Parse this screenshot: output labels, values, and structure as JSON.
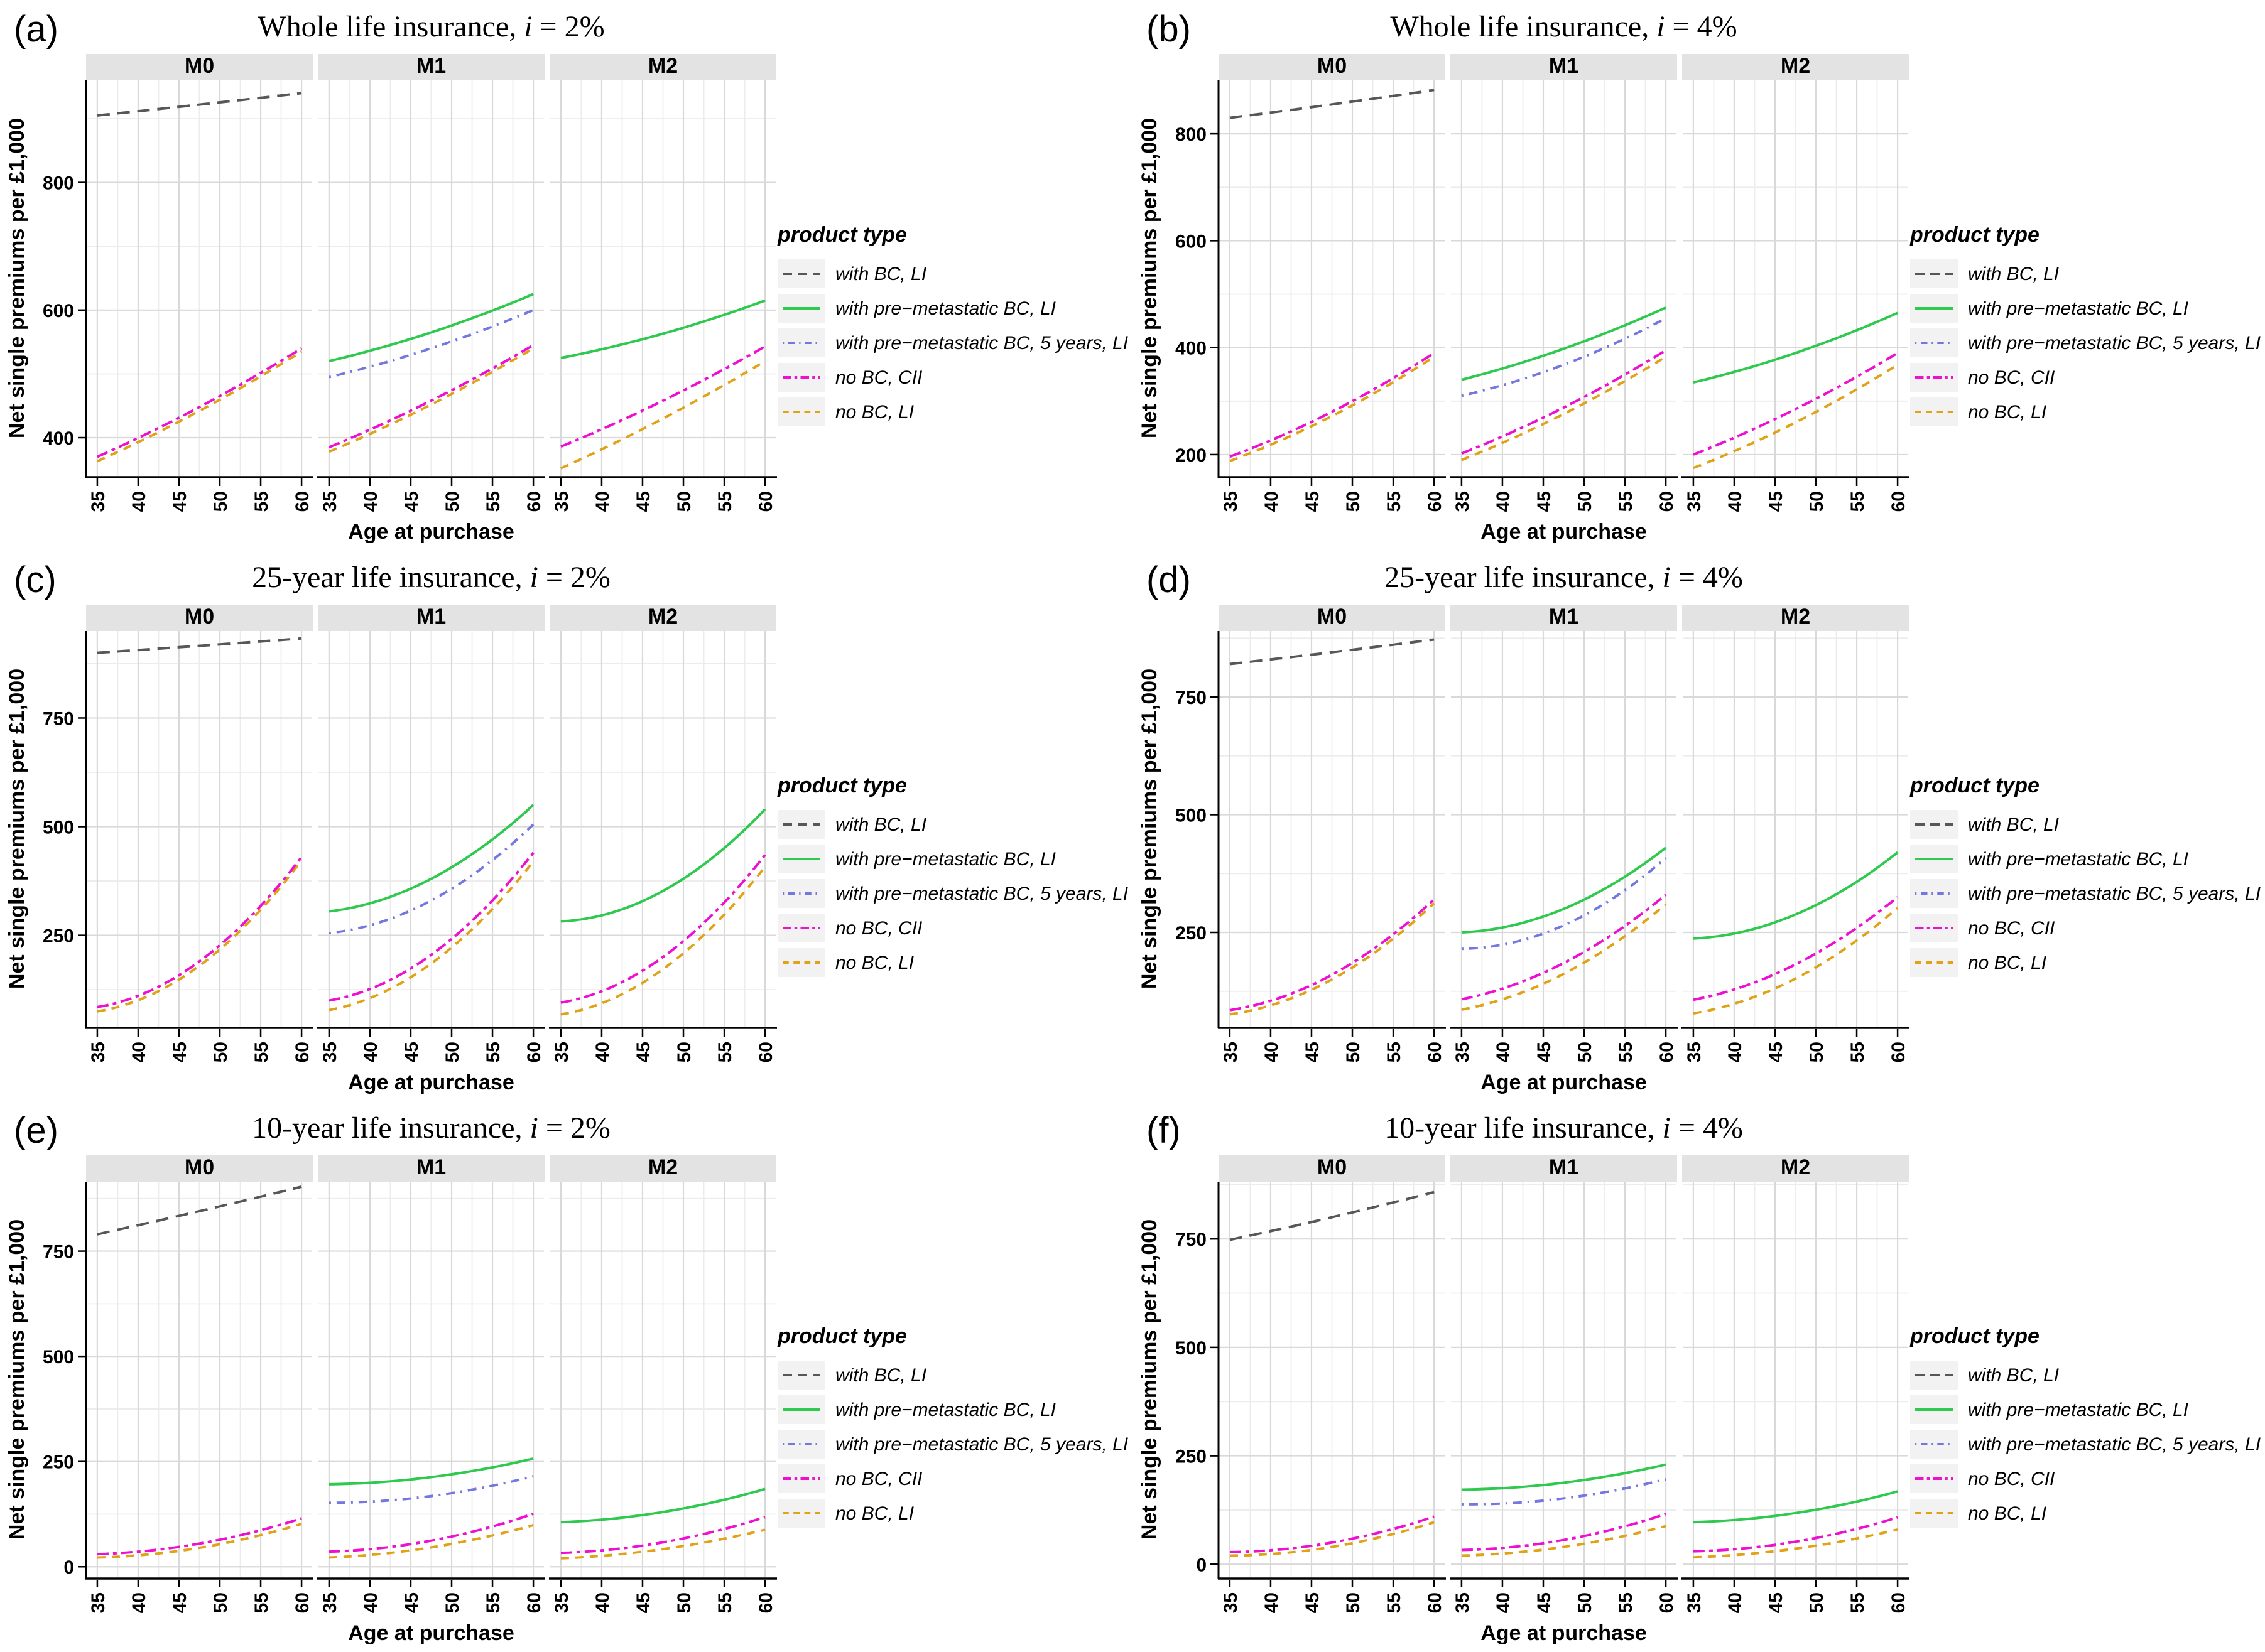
{
  "figure": {
    "y_axis_label": "Net single premiums per £1,000",
    "x_axis_label": "Age at purchase",
    "legend_title": "product type",
    "facet_labels": [
      "M0",
      "M1",
      "M2"
    ],
    "x_ticks": [
      35,
      40,
      45,
      50,
      55,
      60
    ],
    "x_domain": [
      33.7,
      61.3
    ],
    "colors": {
      "strip_bg": "#E3E3E3",
      "grid_major": "#D9D9D9",
      "grid_minor": "#ECECEC",
      "legend_key_bg": "#F2F2F2",
      "axis_line": "#000000"
    },
    "series": [
      {
        "key": "withBC",
        "label": "with BC, LI",
        "color": "#575757",
        "dash": [
          20,
          12
        ]
      },
      {
        "key": "preMet",
        "label": "with pre−metastatic BC, LI",
        "color": "#2FC94F",
        "dash": []
      },
      {
        "key": "preMet5",
        "label": "with pre−metastatic BC, 5 years, LI",
        "color": "#7577E0",
        "dash": [
          3,
          9,
          14,
          9
        ]
      },
      {
        "key": "noBC_CII",
        "label": "no BC, CII",
        "color": "#EE10D0",
        "dash": [
          18,
          7,
          6,
          7
        ]
      },
      {
        "key": "noBC_LI",
        "label": "no BC, LI",
        "color": "#E0A318",
        "dash": [
          13,
          10
        ]
      }
    ]
  },
  "chart_data": [
    {
      "id": "a",
      "label": "(a)",
      "type": "line",
      "title_prefix": "Whole life insurance, ",
      "title_var": "i",
      "title_suffix": " = 2%",
      "x_control": [
        35,
        47.5,
        60
      ],
      "y_ticks": [
        400,
        600,
        800
      ],
      "y_domain": [
        340,
        960
      ],
      "facets": {
        "M0": {
          "withBC": [
            905,
            922,
            940
          ],
          "noBC_CII": [
            370,
            448,
            540
          ],
          "noBC_LI": [
            363,
            442,
            535
          ]
        },
        "M1": {
          "preMet": [
            520,
            565,
            625
          ],
          "preMet5": [
            495,
            540,
            600
          ],
          "noBC_CII": [
            385,
            458,
            545
          ],
          "noBC_LI": [
            378,
            452,
            540
          ]
        },
        "M2": {
          "preMet": [
            525,
            563,
            615
          ],
          "noBC_CII": [
            386,
            458,
            543
          ],
          "noBC_LI": [
            352,
            430,
            520
          ]
        }
      }
    },
    {
      "id": "b",
      "label": "(b)",
      "type": "line",
      "title_prefix": "Whole life insurance, ",
      "title_var": "i",
      "title_suffix": " = 4%",
      "x_control": [
        35,
        47.5,
        60
      ],
      "y_ticks": [
        200,
        400,
        600,
        800
      ],
      "y_domain": [
        160,
        900
      ],
      "facets": {
        "M0": {
          "withBC": [
            830,
            855,
            882
          ],
          "noBC_CII": [
            196,
            280,
            390
          ],
          "noBC_LI": [
            188,
            272,
            383
          ]
        },
        "M1": {
          "preMet": [
            340,
            398,
            475
          ],
          "preMet5": [
            310,
            368,
            455
          ],
          "noBC_CII": [
            202,
            288,
            395
          ],
          "noBC_LI": [
            190,
            276,
            383
          ]
        },
        "M2": {
          "preMet": [
            335,
            390,
            465
          ],
          "noBC_CII": [
            200,
            285,
            390
          ],
          "noBC_LI": [
            175,
            260,
            368
          ]
        }
      }
    },
    {
      "id": "c",
      "label": "(c)",
      "type": "line",
      "title_prefix": "25-year life insurance, ",
      "title_var": "i",
      "title_suffix": " = 2%",
      "x_control": [
        35,
        47.5,
        60
      ],
      "y_ticks": [
        250,
        500,
        750
      ],
      "y_domain": [
        40,
        950
      ],
      "facets": {
        "M0": {
          "withBC": [
            900,
            916,
            933
          ],
          "noBC_CII": [
            85,
            190,
            430
          ],
          "noBC_LI": [
            75,
            180,
            422
          ]
        },
        "M1": {
          "preMet": [
            305,
            380,
            550
          ],
          "preMet5": [
            255,
            330,
            505
          ],
          "noBC_CII": [
            100,
            205,
            440
          ],
          "noBC_LI": [
            78,
            185,
            420
          ]
        },
        "M2": {
          "preMet": [
            282,
            352,
            540
          ],
          "noBC_CII": [
            95,
            200,
            435
          ],
          "noBC_LI": [
            68,
            172,
            408
          ]
        }
      }
    },
    {
      "id": "d",
      "label": "(d)",
      "type": "line",
      "title_prefix": "25-year life insurance, ",
      "title_var": "i",
      "title_suffix": " = 4%",
      "x_control": [
        35,
        47.5,
        60
      ],
      "y_ticks": [
        250,
        500,
        750
      ],
      "y_domain": [
        50,
        890
      ],
      "facets": {
        "M0": {
          "withBC": [
            820,
            845,
            872
          ],
          "noBC_CII": [
            85,
            160,
            320
          ],
          "noBC_LI": [
            76,
            150,
            312
          ]
        },
        "M1": {
          "preMet": [
            250,
            300,
            430
          ],
          "preMet5": [
            215,
            265,
            408
          ],
          "noBC_CII": [
            108,
            185,
            330
          ],
          "noBC_LI": [
            86,
            162,
            310
          ]
        },
        "M2": {
          "preMet": [
            237,
            288,
            420
          ],
          "noBC_CII": [
            107,
            182,
            325
          ],
          "noBC_LI": [
            78,
            152,
            302
          ]
        }
      }
    },
    {
      "id": "e",
      "label": "(e)",
      "type": "line",
      "title_prefix": "10-year life insurance, ",
      "title_var": "i",
      "title_suffix": " = 2%",
      "x_control": [
        35,
        47.5,
        60
      ],
      "y_ticks": [
        0,
        250,
        500,
        750
      ],
      "y_domain": [
        -25,
        915
      ],
      "facets": {
        "M0": {
          "withBC": [
            790,
            845,
            903
          ],
          "noBC_CII": [
            30,
            55,
            115
          ],
          "noBC_LI": [
            22,
            45,
            102
          ]
        },
        "M1": {
          "preMet": [
            196,
            213,
            257
          ],
          "preMet5": [
            152,
            168,
            215
          ],
          "noBC_CII": [
            36,
            62,
            126
          ],
          "noBC_LI": [
            22,
            46,
            99
          ]
        },
        "M2": {
          "preMet": [
            106,
            130,
            185
          ],
          "noBC_CII": [
            33,
            58,
            118
          ],
          "noBC_LI": [
            20,
            42,
            88
          ]
        }
      }
    },
    {
      "id": "f",
      "label": "(f)",
      "type": "line",
      "title_prefix": "10-year life insurance, ",
      "title_var": "i",
      "title_suffix": " = 4%",
      "x_control": [
        35,
        47.5,
        60
      ],
      "y_ticks": [
        0,
        250,
        500,
        750
      ],
      "y_domain": [
        -30,
        882
      ],
      "facets": {
        "M0": {
          "withBC": [
            748,
            800,
            858
          ],
          "noBC_CII": [
            28,
            50,
            110
          ],
          "noBC_LI": [
            20,
            40,
            97
          ]
        },
        "M1": {
          "preMet": [
            172,
            188,
            230
          ],
          "preMet5": [
            138,
            152,
            196
          ],
          "noBC_CII": [
            33,
            56,
            116
          ],
          "noBC_LI": [
            20,
            40,
            88
          ]
        },
        "M2": {
          "preMet": [
            97,
            118,
            168
          ],
          "noBC_CII": [
            30,
            52,
            108
          ],
          "noBC_LI": [
            16,
            36,
            80
          ]
        }
      }
    }
  ]
}
